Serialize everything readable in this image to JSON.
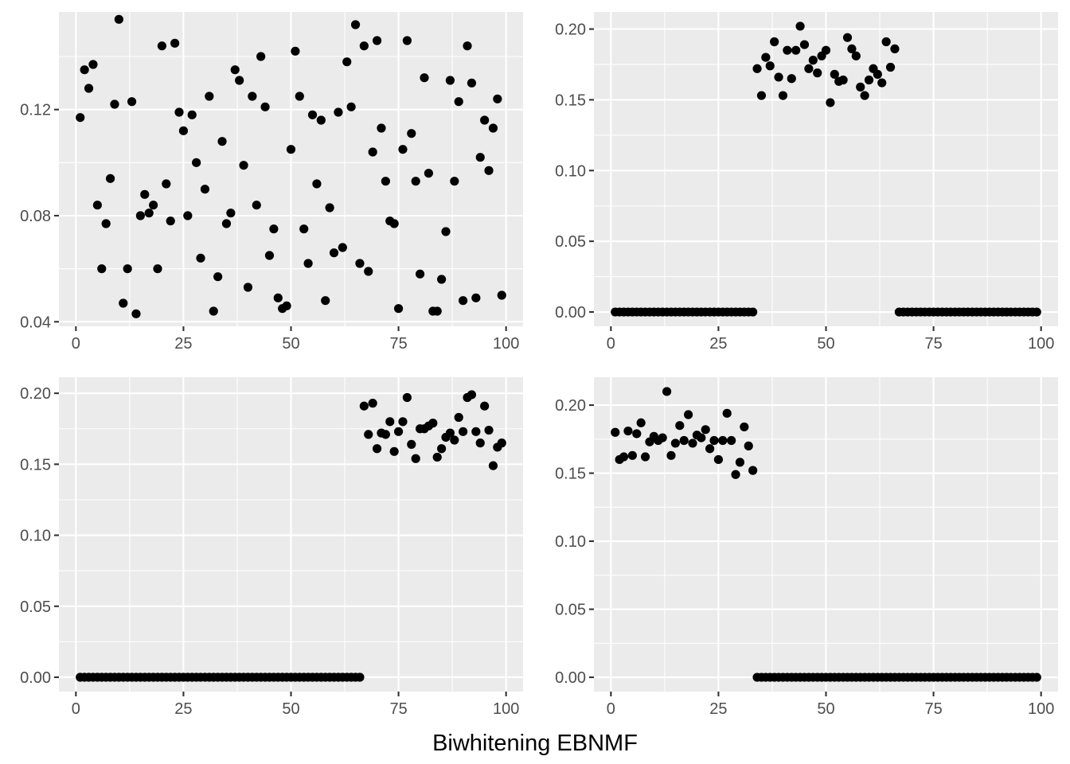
{
  "figure": {
    "caption": "Biwhitening EBNMF",
    "colors": {
      "panel": "#EBEBEB",
      "grid": "#FFFFFF",
      "point": "#000000",
      "tick_text": "#4D4D4D",
      "tick": "#333333"
    }
  },
  "chart_data": [
    {
      "type": "scatter",
      "xlabel": "",
      "ylabel": "",
      "xlim": [
        -3.95,
        103.95
      ],
      "ylim": [
        0.0383,
        0.1568
      ],
      "x_ticks": [
        0,
        25,
        50,
        75,
        100
      ],
      "x_tick_labels": [
        "0",
        "25",
        "50",
        "75",
        "100"
      ],
      "y_ticks": [
        0.04,
        0.08,
        0.12
      ],
      "y_tick_labels": [
        "0.04",
        "0.08",
        "0.12"
      ],
      "grid": true,
      "x": [
        1,
        2,
        3,
        4,
        5,
        6,
        7,
        8,
        9,
        10,
        11,
        12,
        13,
        14,
        15,
        16,
        17,
        18,
        19,
        20,
        21,
        22,
        23,
        24,
        25,
        26,
        27,
        28,
        29,
        30,
        31,
        32,
        33,
        34,
        35,
        36,
        37,
        38,
        39,
        40,
        41,
        42,
        43,
        44,
        45,
        46,
        47,
        48,
        49,
        50,
        51,
        52,
        53,
        54,
        55,
        56,
        57,
        58,
        59,
        60,
        61,
        62,
        63,
        64,
        65,
        66,
        67,
        68,
        69,
        70,
        71,
        72,
        73,
        74,
        75,
        76,
        77,
        78,
        79,
        80,
        81,
        82,
        83,
        84,
        85,
        86,
        87,
        88,
        89,
        90,
        91,
        92,
        93,
        94,
        95,
        96,
        97,
        98,
        99
      ],
      "y": [
        0.117,
        0.135,
        0.128,
        0.137,
        0.084,
        0.06,
        0.077,
        0.094,
        0.122,
        0.154,
        0.047,
        0.06,
        0.123,
        0.043,
        0.08,
        0.088,
        0.081,
        0.084,
        0.06,
        0.144,
        0.092,
        0.078,
        0.145,
        0.119,
        0.112,
        0.08,
        0.118,
        0.1,
        0.064,
        0.09,
        0.125,
        0.044,
        0.057,
        0.108,
        0.077,
        0.081,
        0.135,
        0.131,
        0.099,
        0.053,
        0.125,
        0.084,
        0.14,
        0.121,
        0.065,
        0.075,
        0.049,
        0.045,
        0.046,
        0.105,
        0.142,
        0.125,
        0.075,
        0.062,
        0.118,
        0.092,
        0.116,
        0.048,
        0.083,
        0.066,
        0.119,
        0.068,
        0.138,
        0.121,
        0.152,
        0.062,
        0.144,
        0.059,
        0.104,
        0.146,
        0.113,
        0.093,
        0.078,
        0.077,
        0.045,
        0.105,
        0.146,
        0.111,
        0.093,
        0.058,
        0.132,
        0.096,
        0.044,
        0.044,
        0.056,
        0.074,
        0.131,
        0.093,
        0.123,
        0.048,
        0.144,
        0.13,
        0.049,
        0.102,
        0.116,
        0.097,
        0.113,
        0.124,
        0.05
      ]
    },
    {
      "type": "scatter",
      "xlabel": "",
      "ylabel": "",
      "xlim": [
        -3.95,
        103.95
      ],
      "ylim": [
        -0.0101,
        0.2121
      ],
      "x_ticks": [
        0,
        25,
        50,
        75,
        100
      ],
      "x_tick_labels": [
        "0",
        "25",
        "50",
        "75",
        "100"
      ],
      "y_ticks": [
        0,
        0.05,
        0.1,
        0.15,
        0.2
      ],
      "y_tick_labels": [
        "0.00",
        "0.05",
        "0.10",
        "0.15",
        "0.20"
      ],
      "grid": true,
      "x": [
        1,
        2,
        3,
        4,
        5,
        6,
        7,
        8,
        9,
        10,
        11,
        12,
        13,
        14,
        15,
        16,
        17,
        18,
        19,
        20,
        21,
        22,
        23,
        24,
        25,
        26,
        27,
        28,
        29,
        30,
        31,
        32,
        33,
        34,
        35,
        36,
        37,
        38,
        39,
        40,
        41,
        42,
        43,
        44,
        45,
        46,
        47,
        48,
        49,
        50,
        51,
        52,
        53,
        54,
        55,
        56,
        57,
        58,
        59,
        60,
        61,
        62,
        63,
        64,
        65,
        66,
        67,
        68,
        69,
        70,
        71,
        72,
        73,
        74,
        75,
        76,
        77,
        78,
        79,
        80,
        81,
        82,
        83,
        84,
        85,
        86,
        87,
        88,
        89,
        90,
        91,
        92,
        93,
        94,
        95,
        96,
        97,
        98,
        99
      ],
      "y": [
        0,
        0,
        0,
        0,
        0,
        0,
        0,
        0,
        0,
        0,
        0,
        0,
        0,
        0,
        0,
        0,
        0,
        0,
        0,
        0,
        0,
        0,
        0,
        0,
        0,
        0,
        0,
        0,
        0,
        0,
        0,
        0,
        0,
        0.172,
        0.153,
        0.18,
        0.174,
        0.191,
        0.166,
        0.153,
        0.185,
        0.165,
        0.185,
        0.202,
        0.189,
        0.172,
        0.178,
        0.169,
        0.181,
        0.185,
        0.148,
        0.168,
        0.163,
        0.164,
        0.194,
        0.186,
        0.181,
        0.159,
        0.153,
        0.164,
        0.172,
        0.168,
        0.162,
        0.191,
        0.173,
        0.186,
        0,
        0,
        0,
        0,
        0,
        0,
        0,
        0,
        0,
        0,
        0,
        0,
        0,
        0,
        0,
        0,
        0,
        0,
        0,
        0,
        0,
        0,
        0,
        0,
        0,
        0,
        0,
        0,
        0,
        0,
        0,
        0,
        0
      ]
    },
    {
      "type": "scatter",
      "xlabel": "",
      "ylabel": "",
      "xlim": [
        -3.95,
        103.95
      ],
      "ylim": [
        -0.0101,
        0.2113
      ],
      "x_ticks": [
        0,
        25,
        50,
        75,
        100
      ],
      "x_tick_labels": [
        "0",
        "25",
        "50",
        "75",
        "100"
      ],
      "y_ticks": [
        0,
        0.05,
        0.1,
        0.15,
        0.2
      ],
      "y_tick_labels": [
        "0.00",
        "0.05",
        "0.10",
        "0.15",
        "0.20"
      ],
      "grid": true,
      "x": [
        1,
        2,
        3,
        4,
        5,
        6,
        7,
        8,
        9,
        10,
        11,
        12,
        13,
        14,
        15,
        16,
        17,
        18,
        19,
        20,
        21,
        22,
        23,
        24,
        25,
        26,
        27,
        28,
        29,
        30,
        31,
        32,
        33,
        34,
        35,
        36,
        37,
        38,
        39,
        40,
        41,
        42,
        43,
        44,
        45,
        46,
        47,
        48,
        49,
        50,
        51,
        52,
        53,
        54,
        55,
        56,
        57,
        58,
        59,
        60,
        61,
        62,
        63,
        64,
        65,
        66,
        67,
        68,
        69,
        70,
        71,
        72,
        73,
        74,
        75,
        76,
        77,
        78,
        79,
        80,
        81,
        82,
        83,
        84,
        85,
        86,
        87,
        88,
        89,
        90,
        91,
        92,
        93,
        94,
        95,
        96,
        97,
        98,
        99
      ],
      "y": [
        0,
        0,
        0,
        0,
        0,
        0,
        0,
        0,
        0,
        0,
        0,
        0,
        0,
        0,
        0,
        0,
        0,
        0,
        0,
        0,
        0,
        0,
        0,
        0,
        0,
        0,
        0,
        0,
        0,
        0,
        0,
        0,
        0,
        0,
        0,
        0,
        0,
        0,
        0,
        0,
        0,
        0,
        0,
        0,
        0,
        0,
        0,
        0,
        0,
        0,
        0,
        0,
        0,
        0,
        0,
        0,
        0,
        0,
        0,
        0,
        0,
        0,
        0,
        0,
        0,
        0,
        0.191,
        0.171,
        0.193,
        0.161,
        0.172,
        0.171,
        0.18,
        0.159,
        0.173,
        0.18,
        0.197,
        0.164,
        0.154,
        0.175,
        0.175,
        0.177,
        0.179,
        0.155,
        0.161,
        0.169,
        0.172,
        0.167,
        0.183,
        0.173,
        0.197,
        0.199,
        0.173,
        0.165,
        0.191,
        0.174,
        0.149,
        0.162,
        0.165
      ]
    },
    {
      "type": "scatter",
      "xlabel": "",
      "ylabel": "",
      "xlim": [
        -3.95,
        103.95
      ],
      "ylim": [
        -0.0105,
        0.2205
      ],
      "x_ticks": [
        0,
        25,
        50,
        75,
        100
      ],
      "x_tick_labels": [
        "0",
        "25",
        "50",
        "75",
        "100"
      ],
      "y_ticks": [
        0,
        0.05,
        0.1,
        0.15,
        0.2
      ],
      "y_tick_labels": [
        "0.00",
        "0.05",
        "0.10",
        "0.15",
        "0.20"
      ],
      "grid": true,
      "x": [
        1,
        2,
        3,
        4,
        5,
        6,
        7,
        8,
        9,
        10,
        11,
        12,
        13,
        14,
        15,
        16,
        17,
        18,
        19,
        20,
        21,
        22,
        23,
        24,
        25,
        26,
        27,
        28,
        29,
        30,
        31,
        32,
        33,
        34,
        35,
        36,
        37,
        38,
        39,
        40,
        41,
        42,
        43,
        44,
        45,
        46,
        47,
        48,
        49,
        50,
        51,
        52,
        53,
        54,
        55,
        56,
        57,
        58,
        59,
        60,
        61,
        62,
        63,
        64,
        65,
        66,
        67,
        68,
        69,
        70,
        71,
        72,
        73,
        74,
        75,
        76,
        77,
        78,
        79,
        80,
        81,
        82,
        83,
        84,
        85,
        86,
        87,
        88,
        89,
        90,
        91,
        92,
        93,
        94,
        95,
        96,
        97,
        98,
        99
      ],
      "y": [
        0.18,
        0.16,
        0.162,
        0.181,
        0.163,
        0.179,
        0.187,
        0.162,
        0.173,
        0.177,
        0.174,
        0.176,
        0.21,
        0.163,
        0.172,
        0.185,
        0.174,
        0.193,
        0.172,
        0.178,
        0.176,
        0.182,
        0.168,
        0.174,
        0.16,
        0.174,
        0.194,
        0.174,
        0.149,
        0.158,
        0.184,
        0.17,
        0.152,
        0,
        0,
        0,
        0,
        0,
        0,
        0,
        0,
        0,
        0,
        0,
        0,
        0,
        0,
        0,
        0,
        0,
        0,
        0,
        0,
        0,
        0,
        0,
        0,
        0,
        0,
        0,
        0,
        0,
        0,
        0,
        0,
        0,
        0,
        0,
        0,
        0,
        0,
        0,
        0,
        0,
        0,
        0,
        0,
        0,
        0,
        0,
        0,
        0,
        0,
        0,
        0,
        0,
        0,
        0,
        0,
        0,
        0,
        0,
        0,
        0,
        0,
        0,
        0,
        0,
        0
      ]
    }
  ]
}
